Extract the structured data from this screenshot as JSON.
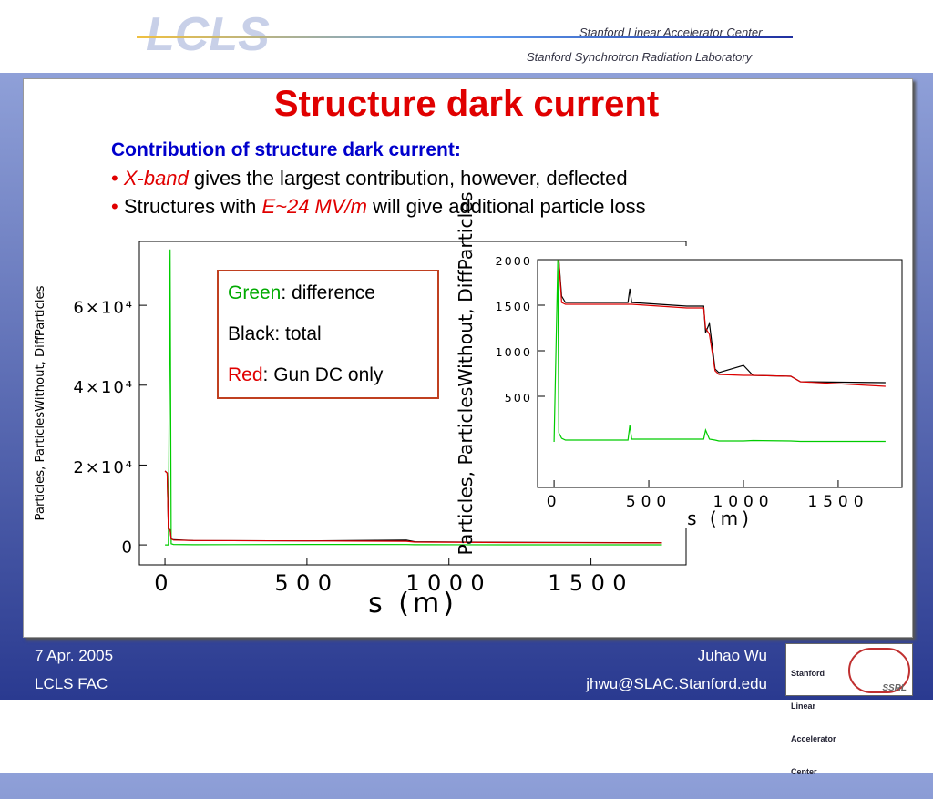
{
  "header": {
    "logo": "LCLS",
    "org_1": "Stanford Linear Accelerator Center",
    "org_2": "Stanford Synchrotron Radiation Laboratory"
  },
  "slide": {
    "title": "Structure dark current",
    "subtitle": "Contribution of structure dark current:",
    "bullets": [
      {
        "em": "X-band",
        "text": " gives the largest contribution, however, deflected"
      },
      {
        "pre": "Structures with ",
        "em": "E~24 MV/m",
        "text": " will give additional particle loss"
      }
    ],
    "legend_box": {
      "green_word": "Green",
      "green_text": ": difference",
      "black_text": "Black: total",
      "red_word": "Red",
      "red_text": ": Gun DC only"
    }
  },
  "footer": {
    "date": "7 Apr. 2005",
    "meeting": "LCLS FAC",
    "author": "Juhao Wu",
    "email": "jhwu@SLAC.Stanford.edu",
    "logo_lines": [
      "Stanford",
      "Linear",
      "Accelerator",
      "Center"
    ],
    "logo_ssrl": "SSRL"
  },
  "chart_data": [
    {
      "type": "line",
      "xlabel": "s (m)",
      "ylabel": "Particles, ParticlesWithout, DiffParticles",
      "xlim": [
        -90,
        1835
      ],
      "ylim": [
        -5000,
        76000
      ],
      "xticks": [
        0,
        500,
        1000,
        1500
      ],
      "yticks": [
        0,
        {
          "value": 20000,
          "label": "2×10⁴"
        },
        {
          "value": 40000,
          "label": "4×10⁴"
        },
        {
          "value": 60000,
          "label": "6×10⁴"
        }
      ],
      "x": [
        0,
        8,
        12,
        18,
        22,
        30,
        100,
        500,
        850,
        880,
        1200,
        1750
      ],
      "series": [
        {
          "color": "#00cc00",
          "values": [
            0,
            0,
            0,
            74000,
            300,
            100,
            50,
            100,
            80,
            50,
            30,
            20
          ]
        },
        {
          "color": "#000000",
          "values": [
            18500,
            18000,
            4000,
            3800,
            1500,
            1300,
            1100,
            1000,
            1200,
            800,
            650,
            550
          ]
        },
        {
          "color": "#dd0000",
          "values": [
            18500,
            18000,
            4000,
            3800,
            1500,
            1200,
            1100,
            1000,
            900,
            700,
            600,
            500
          ]
        }
      ]
    },
    {
      "type": "line",
      "xlabel": "s (m)",
      "ylabel": "Particles, ParticlesWithout, DiffParticles",
      "xlim": [
        -87,
        1837
      ],
      "ylim": [
        -500,
        2000
      ],
      "xticks": [
        0,
        500,
        1000,
        1500
      ],
      "yticks": [
        500,
        1000,
        1500,
        2000
      ],
      "x": [
        0,
        20,
        25,
        40,
        60,
        390,
        400,
        410,
        700,
        790,
        800,
        820,
        850,
        870,
        1000,
        1050,
        1250,
        1300,
        1750
      ],
      "series": [
        {
          "color": "#00cc00",
          "values": [
            0,
            2000,
            100,
            40,
            20,
            20,
            180,
            30,
            30,
            30,
            130,
            30,
            20,
            10,
            10,
            15,
            10,
            5,
            5
          ]
        },
        {
          "color": "#000000",
          "values": [
            null,
            null,
            2000,
            1600,
            1530,
            1530,
            1680,
            1530,
            1490,
            1490,
            1200,
            1300,
            800,
            760,
            840,
            730,
            720,
            660,
            650
          ]
        },
        {
          "color": "#dd0000",
          "values": [
            null,
            null,
            2000,
            1530,
            1510,
            1510,
            1510,
            1510,
            1470,
            1470,
            1250,
            1180,
            780,
            740,
            730,
            730,
            720,
            660,
            610
          ]
        }
      ]
    }
  ]
}
